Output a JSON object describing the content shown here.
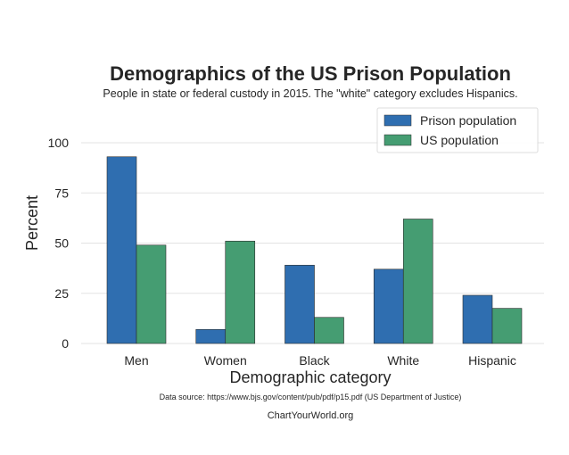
{
  "chart_data": {
    "type": "bar",
    "title": "Demographics of the US Prison Population",
    "subtitle": "People in state or federal custody in 2015. The \"white\" category excludes Hispanics.",
    "xlabel": "Demographic category",
    "ylabel": "Percent",
    "categories": [
      "Men",
      "Women",
      "Black",
      "White",
      "Hispanic"
    ],
    "series": [
      {
        "name": "Prison population",
        "values": [
          93,
          7,
          39,
          37,
          24
        ],
        "color": "#2f6eb0"
      },
      {
        "name": "US population",
        "values": [
          49,
          51,
          13,
          62,
          17.5
        ],
        "color": "#459d72"
      }
    ],
    "ylim": [
      0,
      120
    ],
    "yticks": [
      0,
      25,
      50,
      75,
      100
    ],
    "grid": true,
    "legend_position": "top-right"
  },
  "source_note": "Data source: https://www.bjs.gov/content/pub/pdf/p15.pdf (US Department of Justice)",
  "credit": "ChartYourWorld.org"
}
